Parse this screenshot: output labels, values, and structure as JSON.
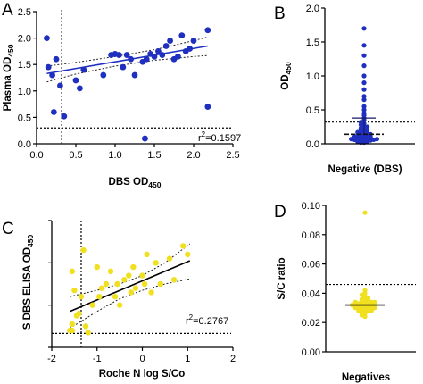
{
  "chart_data": [
    {
      "panel": "A",
      "type": "scatter",
      "xlabel": "DBS OD",
      "xlabel_sub": "450",
      "ylabel": "Plasma OD",
      "ylabel_sub": "450",
      "xlim": [
        0,
        2.5
      ],
      "ylim": [
        0,
        2.5
      ],
      "xticks": [
        "0.0",
        "0.5",
        "1.0",
        "1.5",
        "2.0",
        "2.5"
      ],
      "yticks": [
        "0.0",
        "0.5",
        "1.0",
        "1.5",
        "2.0",
        "2.5"
      ],
      "color": "#1f2fbf",
      "points": [
        {
          "x": 0.13,
          "y": 2.0
        },
        {
          "x": 0.15,
          "y": 1.45
        },
        {
          "x": 0.2,
          "y": 1.3
        },
        {
          "x": 0.22,
          "y": 0.6
        },
        {
          "x": 0.25,
          "y": 1.6
        },
        {
          "x": 0.3,
          "y": 1.1
        },
        {
          "x": 0.35,
          "y": 0.52
        },
        {
          "x": 0.5,
          "y": 1.2
        },
        {
          "x": 0.55,
          "y": 1.05
        },
        {
          "x": 0.6,
          "y": 1.4
        },
        {
          "x": 0.85,
          "y": 1.3
        },
        {
          "x": 0.95,
          "y": 1.68
        },
        {
          "x": 1.0,
          "y": 1.7
        },
        {
          "x": 1.05,
          "y": 1.68
        },
        {
          "x": 1.1,
          "y": 1.45
        },
        {
          "x": 1.15,
          "y": 1.68
        },
        {
          "x": 1.2,
          "y": 1.6
        },
        {
          "x": 1.25,
          "y": 1.3
        },
        {
          "x": 1.35,
          "y": 1.55
        },
        {
          "x": 1.4,
          "y": 1.6
        },
        {
          "x": 1.45,
          "y": 1.7
        },
        {
          "x": 1.5,
          "y": 1.65
        },
        {
          "x": 1.55,
          "y": 1.75
        },
        {
          "x": 1.6,
          "y": 1.68
        },
        {
          "x": 1.65,
          "y": 1.85
        },
        {
          "x": 1.7,
          "y": 1.95
        },
        {
          "x": 1.75,
          "y": 1.6
        },
        {
          "x": 1.8,
          "y": 1.65
        },
        {
          "x": 1.85,
          "y": 2.05
        },
        {
          "x": 1.9,
          "y": 1.75
        },
        {
          "x": 1.95,
          "y": 1.8
        },
        {
          "x": 2.0,
          "y": 1.95
        },
        {
          "x": 2.18,
          "y": 2.15
        },
        {
          "x": 2.18,
          "y": 0.7
        },
        {
          "x": 1.38,
          "y": 0.1
        }
      ],
      "fit_line": {
        "x": [
          0.13,
          2.18
        ],
        "y": [
          1.33,
          1.85
        ]
      },
      "ci_upper": {
        "x": [
          0.13,
          0.5,
          1.0,
          1.5,
          2.0,
          2.18
        ],
        "y": [
          1.47,
          1.54,
          1.65,
          1.78,
          1.95,
          2.02
        ]
      },
      "ci_lower": {
        "x": [
          0.13,
          0.5,
          1.0,
          1.5,
          2.0,
          2.18
        ],
        "y": [
          1.17,
          1.32,
          1.47,
          1.58,
          1.65,
          1.67
        ]
      },
      "threshold_x": 0.32,
      "threshold_y": 0.3,
      "annotation": "r",
      "annotation_sup": "2",
      "annotation_rest": "=0.1597"
    },
    {
      "panel": "B",
      "type": "scatter",
      "xlabel": "Negative (DBS)",
      "ylabel": "OD",
      "ylabel_sub": "450",
      "ylim": [
        0,
        2.0
      ],
      "yticks": [
        "0.0",
        "0.5",
        "1.0",
        "1.5",
        "2.0"
      ],
      "color": "#1f2fbf",
      "values": [
        1.7,
        1.45,
        1.3,
        1.15,
        1.0,
        0.9,
        0.8,
        0.7,
        0.65,
        0.55,
        0.5,
        0.45,
        0.42,
        0.38,
        0.35,
        0.32,
        0.3,
        0.28,
        0.26,
        0.25,
        0.23,
        0.22,
        0.2,
        0.2,
        0.18,
        0.17,
        0.16,
        0.15,
        0.15,
        0.14,
        0.13,
        0.12,
        0.12,
        0.11,
        0.1,
        0.1,
        0.09,
        0.09,
        0.08,
        0.08,
        0.07,
        0.07,
        0.06,
        0.06,
        0.05,
        0.05,
        0.05,
        0.04,
        0.04,
        0.03,
        0.03,
        0.02,
        0.02
      ],
      "mean": 0.14,
      "sd_upper": 0.38,
      "sd_lower": 0.0,
      "threshold": 0.32
    },
    {
      "panel": "C",
      "type": "scatter",
      "xlabel": "Roche N log S/Co",
      "ylabel": "S DBS ELISA OD",
      "ylabel_sub": "450",
      "xlim": [
        -2,
        2
      ],
      "ylim": [
        0,
        3
      ],
      "xticks": [
        "-2",
        "-1",
        "0",
        "1",
        "2"
      ],
      "color": "#f0e020",
      "points": [
        {
          "x": -1.6,
          "y": 0.4
        },
        {
          "x": -1.55,
          "y": 0.55
        },
        {
          "x": -1.55,
          "y": 1.8
        },
        {
          "x": -1.5,
          "y": 1.35
        },
        {
          "x": -1.45,
          "y": 0.75
        },
        {
          "x": -1.4,
          "y": 0.8
        },
        {
          "x": -1.35,
          "y": 1.2
        },
        {
          "x": -1.3,
          "y": 2.3
        },
        {
          "x": -1.25,
          "y": 0.5
        },
        {
          "x": -1.1,
          "y": 1.0
        },
        {
          "x": -1.0,
          "y": 1.9
        },
        {
          "x": -0.95,
          "y": 1.2
        },
        {
          "x": -0.9,
          "y": 1.4
        },
        {
          "x": -0.8,
          "y": 1.5
        },
        {
          "x": -0.7,
          "y": 1.8
        },
        {
          "x": -0.6,
          "y": 1.2
        },
        {
          "x": -0.55,
          "y": 1.5
        },
        {
          "x": -0.5,
          "y": 1.0
        },
        {
          "x": -0.4,
          "y": 1.6
        },
        {
          "x": -0.3,
          "y": 1.7
        },
        {
          "x": -0.25,
          "y": 1.3
        },
        {
          "x": -0.2,
          "y": 1.9
        },
        {
          "x": -0.15,
          "y": 1.4
        },
        {
          "x": 0.0,
          "y": 1.7
        },
        {
          "x": 0.05,
          "y": 1.5
        },
        {
          "x": 0.1,
          "y": 2.2
        },
        {
          "x": 0.2,
          "y": 1.3
        },
        {
          "x": 0.3,
          "y": 2.0
        },
        {
          "x": 0.4,
          "y": 1.5
        },
        {
          "x": 0.6,
          "y": 2.1
        },
        {
          "x": 0.7,
          "y": 1.6
        },
        {
          "x": 0.9,
          "y": 2.4
        },
        {
          "x": 1.0,
          "y": 2.2
        },
        {
          "x": -1.55,
          "y": 0.4
        },
        {
          "x": -1.2,
          "y": 0.35
        }
      ],
      "fit_line": {
        "x": [
          -1.6,
          1.05
        ],
        "y": [
          0.85,
          2.05
        ]
      },
      "ci_upper": {
        "x": [
          -1.6,
          -1.0,
          -0.5,
          0.0,
          0.5,
          1.05
        ],
        "y": [
          1.2,
          1.35,
          1.5,
          1.7,
          2.0,
          2.45
        ]
      },
      "ci_lower": {
        "x": [
          -1.6,
          -1.0,
          -0.5,
          0.0,
          0.5,
          1.05
        ],
        "y": [
          0.45,
          0.85,
          1.15,
          1.35,
          1.5,
          1.62
        ]
      },
      "threshold_x": -1.35,
      "threshold_y": 0.33,
      "annotation": "r",
      "annotation_sup": "2",
      "annotation_rest": "=0.2767"
    },
    {
      "panel": "D",
      "type": "scatter",
      "xlabel": "Negatives",
      "ylabel": "S/C ratio",
      "ylim": [
        0,
        0.1
      ],
      "yticks": [
        "0.00",
        "0.02",
        "0.04",
        "0.06",
        "0.08",
        "0.10"
      ],
      "color": "#f0e020",
      "values": [
        0.095,
        0.042,
        0.04,
        0.039,
        0.038,
        0.037,
        0.036,
        0.036,
        0.035,
        0.035,
        0.035,
        0.034,
        0.034,
        0.034,
        0.033,
        0.033,
        0.033,
        0.033,
        0.032,
        0.032,
        0.032,
        0.032,
        0.031,
        0.031,
        0.031,
        0.031,
        0.03,
        0.03,
        0.03,
        0.03,
        0.029,
        0.029,
        0.029,
        0.028,
        0.028,
        0.028,
        0.027,
        0.027,
        0.026,
        0.026,
        0.025,
        0.024
      ],
      "mean": 0.032,
      "threshold": 0.046
    }
  ],
  "letters": [
    "A",
    "B",
    "C",
    "D"
  ]
}
